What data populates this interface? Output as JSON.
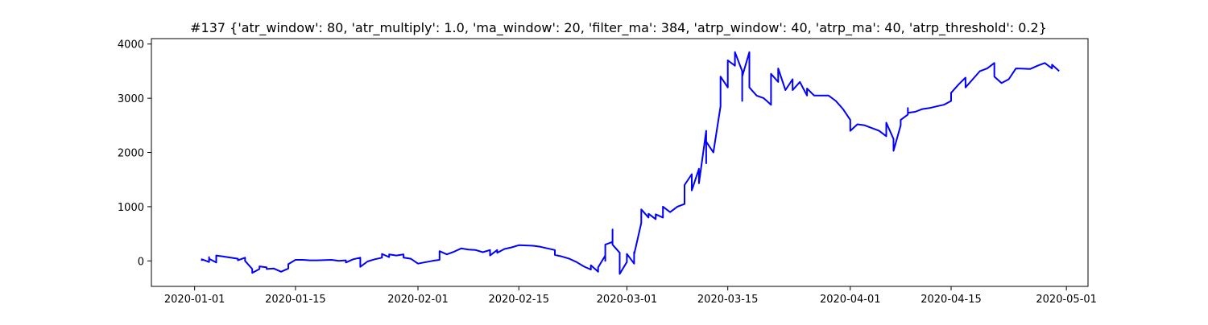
{
  "chart_data": {
    "type": "line",
    "title": "#137 {'atr_window': 80, 'atr_multiply': 1.0, 'ma_window': 20, 'filter_ma': 384, 'atrp_window': 40, 'atrp_ma': 40, 'atrp_threshold': 0.2}",
    "xlabel": "",
    "ylabel": "",
    "grid": false,
    "legend": "none",
    "xlim": [
      "2019-12-26",
      "2020-05-04"
    ],
    "ylim": [
      -470,
      4100
    ],
    "x_ticks": [
      "2020-01-01",
      "2020-01-15",
      "2020-02-01",
      "2020-02-15",
      "2020-03-01",
      "2020-03-15",
      "2020-04-01",
      "2020-04-15",
      "2020-05-01"
    ],
    "y_ticks": [
      0,
      1000,
      2000,
      3000,
      4000
    ],
    "series": [
      {
        "color": "#0000ff",
        "points": [
          [
            "2020-01-02",
            0
          ],
          [
            "2020-01-02",
            30
          ],
          [
            "2020-01-03",
            -20
          ],
          [
            "2020-01-03",
            70
          ],
          [
            "2020-01-03",
            40
          ],
          [
            "2020-01-04",
            -30
          ],
          [
            "2020-01-04",
            100
          ],
          [
            "2020-01-05",
            80
          ],
          [
            "2020-01-06",
            60
          ],
          [
            "2020-01-07",
            40
          ],
          [
            "2020-01-07",
            10
          ],
          [
            "2020-01-08",
            60
          ],
          [
            "2020-01-08",
            30
          ],
          [
            "2020-01-08",
            0
          ],
          [
            "2020-01-09",
            -150
          ],
          [
            "2020-01-09",
            -220
          ],
          [
            "2020-01-10",
            -150
          ],
          [
            "2020-01-10",
            -100
          ],
          [
            "2020-01-11",
            -120
          ],
          [
            "2020-01-11",
            -150
          ],
          [
            "2020-01-12",
            -140
          ],
          [
            "2020-01-13",
            -200
          ],
          [
            "2020-01-14",
            -140
          ],
          [
            "2020-01-14",
            -60
          ],
          [
            "2020-01-15",
            20
          ],
          [
            "2020-01-16",
            20
          ],
          [
            "2020-01-17",
            10
          ],
          [
            "2020-01-18",
            10
          ],
          [
            "2020-01-20",
            20
          ],
          [
            "2020-01-21",
            0
          ],
          [
            "2020-01-22",
            10
          ],
          [
            "2020-01-22",
            -30
          ],
          [
            "2020-01-23",
            30
          ],
          [
            "2020-01-24",
            60
          ],
          [
            "2020-01-24",
            -110
          ],
          [
            "2020-01-25",
            -10
          ],
          [
            "2020-01-26",
            30
          ],
          [
            "2020-01-27",
            60
          ],
          [
            "2020-01-27",
            130
          ],
          [
            "2020-01-28",
            70
          ],
          [
            "2020-01-28",
            120
          ],
          [
            "2020-01-29",
            100
          ],
          [
            "2020-01-30",
            120
          ],
          [
            "2020-01-30",
            60
          ],
          [
            "2020-01-31",
            40
          ],
          [
            "2020-02-01",
            -50
          ],
          [
            "2020-02-03",
            0
          ],
          [
            "2020-02-04",
            20
          ],
          [
            "2020-02-04",
            180
          ],
          [
            "2020-02-05",
            120
          ],
          [
            "2020-02-06",
            170
          ],
          [
            "2020-02-07",
            230
          ],
          [
            "2020-02-08",
            210
          ],
          [
            "2020-02-09",
            200
          ],
          [
            "2020-02-10",
            160
          ],
          [
            "2020-02-11",
            200
          ],
          [
            "2020-02-11",
            100
          ],
          [
            "2020-02-12",
            200
          ],
          [
            "2020-02-12",
            150
          ],
          [
            "2020-02-13",
            220
          ],
          [
            "2020-02-14",
            250
          ],
          [
            "2020-02-15",
            290
          ],
          [
            "2020-02-17",
            280
          ],
          [
            "2020-02-18",
            260
          ],
          [
            "2020-02-19",
            230
          ],
          [
            "2020-02-20",
            200
          ],
          [
            "2020-02-20",
            110
          ],
          [
            "2020-02-21",
            80
          ],
          [
            "2020-02-22",
            40
          ],
          [
            "2020-02-23",
            -20
          ],
          [
            "2020-02-24",
            -100
          ],
          [
            "2020-02-25",
            -160
          ],
          [
            "2020-02-25",
            -80
          ],
          [
            "2020-02-26",
            -200
          ],
          [
            "2020-02-26",
            -120
          ],
          [
            "2020-02-27",
            100
          ],
          [
            "2020-02-27",
            0
          ],
          [
            "2020-02-27",
            300
          ],
          [
            "2020-02-28",
            350
          ],
          [
            "2020-02-28",
            580
          ],
          [
            "2020-02-28",
            300
          ],
          [
            "2020-02-29",
            150
          ],
          [
            "2020-02-29",
            -240
          ],
          [
            "2020-03-01",
            -20
          ],
          [
            "2020-03-01",
            130
          ],
          [
            "2020-03-02",
            -50
          ],
          [
            "2020-03-02",
            160
          ],
          [
            "2020-03-02",
            10
          ],
          [
            "2020-03-02",
            120
          ],
          [
            "2020-03-03",
            700
          ],
          [
            "2020-03-03",
            950
          ],
          [
            "2020-03-04",
            800
          ],
          [
            "2020-03-04",
            870
          ],
          [
            "2020-03-05",
            770
          ],
          [
            "2020-03-05",
            860
          ],
          [
            "2020-03-06",
            800
          ],
          [
            "2020-03-06",
            1000
          ],
          [
            "2020-03-07",
            900
          ],
          [
            "2020-03-08",
            1000
          ],
          [
            "2020-03-09",
            1050
          ],
          [
            "2020-03-09",
            1400
          ],
          [
            "2020-03-10",
            1600
          ],
          [
            "2020-03-10",
            1300
          ],
          [
            "2020-03-11",
            1700
          ],
          [
            "2020-03-11",
            1430
          ],
          [
            "2020-03-12",
            2400
          ],
          [
            "2020-03-12",
            1800
          ],
          [
            "2020-03-12",
            2200
          ],
          [
            "2020-03-13",
            2000
          ],
          [
            "2020-03-14",
            2850
          ],
          [
            "2020-03-14",
            3400
          ],
          [
            "2020-03-15",
            3200
          ],
          [
            "2020-03-15",
            3700
          ],
          [
            "2020-03-16",
            3600
          ],
          [
            "2020-03-16",
            3850
          ],
          [
            "2020-03-17",
            3500
          ],
          [
            "2020-03-17",
            2950
          ],
          [
            "2020-03-17",
            3400
          ],
          [
            "2020-03-18",
            3850
          ],
          [
            "2020-03-18",
            3200
          ],
          [
            "2020-03-19",
            3050
          ],
          [
            "2020-03-20",
            3000
          ],
          [
            "2020-03-21",
            2880
          ],
          [
            "2020-03-21",
            3450
          ],
          [
            "2020-03-22",
            3300
          ],
          [
            "2020-03-22",
            3550
          ],
          [
            "2020-03-23",
            3150
          ],
          [
            "2020-03-24",
            3350
          ],
          [
            "2020-03-24",
            3150
          ],
          [
            "2020-03-25",
            3300
          ],
          [
            "2020-03-26",
            3050
          ],
          [
            "2020-03-26",
            3180
          ],
          [
            "2020-03-27",
            3050
          ],
          [
            "2020-03-29",
            3050
          ],
          [
            "2020-03-30",
            2950
          ],
          [
            "2020-03-31",
            2800
          ],
          [
            "2020-04-01",
            2600
          ],
          [
            "2020-04-01",
            2400
          ],
          [
            "2020-04-02",
            2520
          ],
          [
            "2020-04-03",
            2500
          ],
          [
            "2020-04-05",
            2400
          ],
          [
            "2020-04-06",
            2300
          ],
          [
            "2020-04-06",
            2550
          ],
          [
            "2020-04-07",
            2250
          ],
          [
            "2020-04-07",
            2030
          ],
          [
            "2020-04-08",
            2500
          ],
          [
            "2020-04-08",
            2600
          ],
          [
            "2020-04-09",
            2700
          ],
          [
            "2020-04-09",
            2820
          ],
          [
            "2020-04-09",
            2730
          ],
          [
            "2020-04-10",
            2750
          ],
          [
            "2020-04-11",
            2800
          ],
          [
            "2020-04-12",
            2820
          ],
          [
            "2020-04-13",
            2850
          ],
          [
            "2020-04-14",
            2880
          ],
          [
            "2020-04-15",
            2950
          ],
          [
            "2020-04-15",
            3100
          ],
          [
            "2020-04-16",
            3250
          ],
          [
            "2020-04-17",
            3380
          ],
          [
            "2020-04-17",
            3200
          ],
          [
            "2020-04-18",
            3350
          ],
          [
            "2020-04-19",
            3500
          ],
          [
            "2020-04-20",
            3550
          ],
          [
            "2020-04-21",
            3650
          ],
          [
            "2020-04-21",
            3400
          ],
          [
            "2020-04-22",
            3280
          ],
          [
            "2020-04-23",
            3350
          ],
          [
            "2020-04-24",
            3550
          ],
          [
            "2020-04-26",
            3540
          ],
          [
            "2020-04-27",
            3600
          ],
          [
            "2020-04-28",
            3650
          ],
          [
            "2020-04-29",
            3550
          ],
          [
            "2020-04-29",
            3620
          ],
          [
            "2020-04-30",
            3500
          ]
        ]
      }
    ]
  }
}
